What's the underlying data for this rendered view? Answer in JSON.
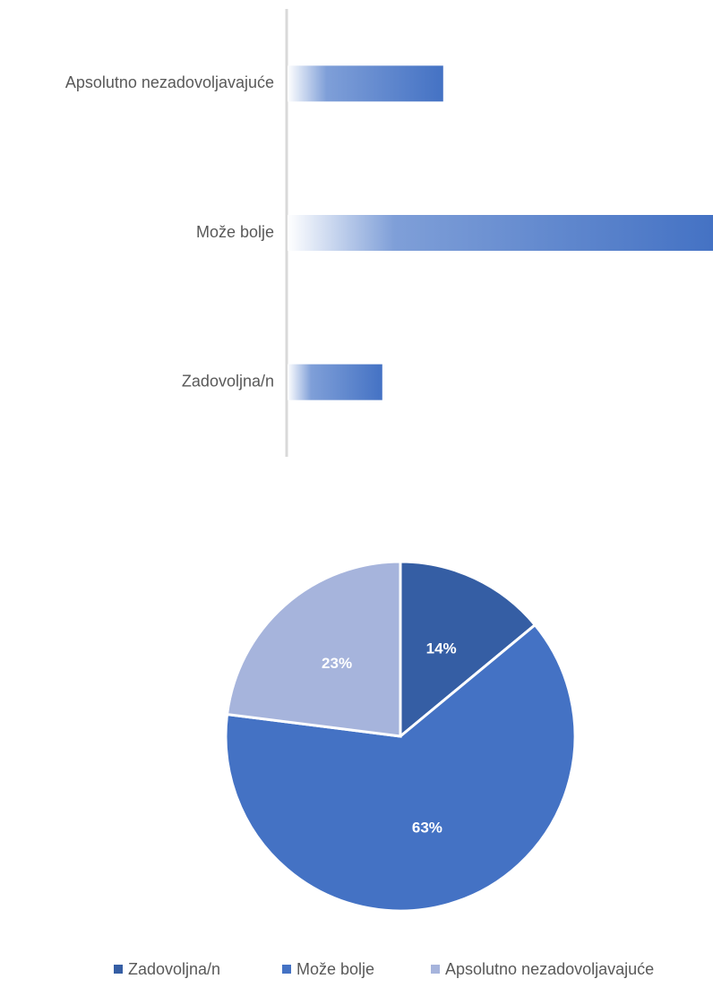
{
  "chart_data": [
    {
      "type": "bar",
      "orientation": "horizontal",
      "categories": [
        "Zadovoljna/n",
        "Može bolje",
        "Apsolutno nezadovoljavajuće"
      ],
      "values": [
        14,
        63,
        23
      ],
      "color": "#4472c4"
    },
    {
      "type": "pie",
      "categories": [
        "Zadovoljna/n",
        "Može bolje",
        "Apsolutno nezadovoljavajuće"
      ],
      "values": [
        14,
        63,
        23
      ],
      "value_labels": [
        "14%",
        "63%",
        "23%"
      ],
      "colors": [
        "#355ea4",
        "#4472c4",
        "#a6b4dc"
      ]
    }
  ]
}
